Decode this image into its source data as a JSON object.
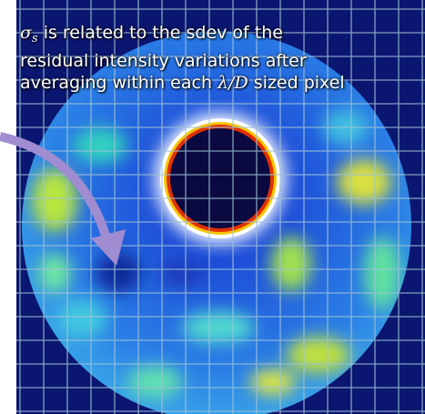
{
  "caption": {
    "lines": [
      [
        {
          "text": "σ",
          "style": "math"
        },
        {
          "text": "s",
          "style": "math-sub"
        },
        {
          "text": " is related to the sdev of the",
          "style": "plain"
        }
      ],
      [
        {
          "text": "residual intensity variations after",
          "style": "plain"
        }
      ],
      [
        {
          "text": "averaging within each ",
          "style": "plain"
        },
        {
          "text": "λ/D",
          "style": "math"
        },
        {
          "text": " sized pixel",
          "style": "plain"
        }
      ]
    ]
  }
}
